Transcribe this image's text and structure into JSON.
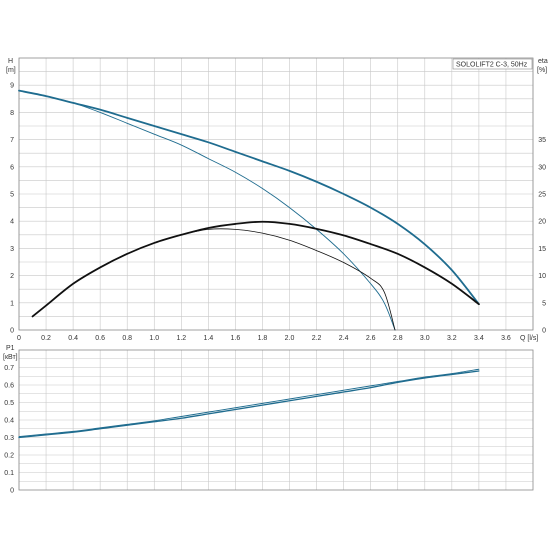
{
  "colors": {
    "h_curve": "#1f6c8f",
    "eta_curve": "#111111",
    "p1_curve": "#1f6c8f",
    "grid": "#c8c8c8",
    "frame": "#8a8a8a"
  },
  "chart_data": [
    {
      "type": "line",
      "legend_box": "SOLOLIFT2 C-3, 50Hz",
      "xlabel": "Q [l/s]",
      "ylabel_left": "H",
      "ylabel_left_unit": "[m]",
      "ylabel_right": "eta",
      "ylabel_right_unit": "[%]",
      "xlim": [
        0,
        3.8
      ],
      "ylim": [
        0,
        10
      ],
      "ylim_right": [
        0,
        50
      ],
      "x_ticks": [
        "0",
        "0.2",
        "0.4",
        "0.6",
        "0.8",
        "1.0",
        "1.2",
        "1.4",
        "1.6",
        "1.8",
        "2.0",
        "2.2",
        "2.4",
        "2.6",
        "2.8",
        "3.0",
        "3.2",
        "3.4",
        "3.6"
      ],
      "y_ticks": [
        "0",
        "1",
        "2",
        "3",
        "4",
        "5",
        "6",
        "7",
        "8",
        "9"
      ],
      "y_ticks_right": [
        "0",
        "5",
        "10",
        "15",
        "20",
        "25",
        "30",
        "35"
      ],
      "grid": true,
      "series": [
        {
          "axis": "left",
          "style": "h-thick",
          "x": [
            0,
            0.2,
            0.4,
            0.6,
            0.8,
            1.0,
            1.2,
            1.4,
            1.6,
            1.8,
            2.0,
            2.2,
            2.4,
            2.6,
            2.8,
            3.0,
            3.2,
            3.4
          ],
          "y": [
            8.8,
            8.6,
            8.35,
            8.1,
            7.8,
            7.5,
            7.2,
            6.9,
            6.55,
            6.2,
            5.85,
            5.45,
            5.0,
            4.5,
            3.9,
            3.15,
            2.2,
            0.95
          ]
        },
        {
          "axis": "left",
          "style": "h-thin",
          "x": [
            0,
            0.2,
            0.4,
            0.6,
            0.8,
            1.0,
            1.2,
            1.4,
            1.6,
            1.8,
            2.0,
            2.2,
            2.4,
            2.6,
            2.7,
            2.78
          ],
          "y": [
            8.8,
            8.6,
            8.35,
            8.0,
            7.6,
            7.2,
            6.8,
            6.3,
            5.8,
            5.2,
            4.5,
            3.7,
            2.8,
            1.7,
            1.0,
            0.0
          ]
        },
        {
          "axis": "right",
          "style": "eta-thick",
          "x": [
            0.1,
            0.2,
            0.4,
            0.6,
            0.8,
            1.0,
            1.2,
            1.4,
            1.6,
            1.8,
            2.0,
            2.2,
            2.4,
            2.6,
            2.8,
            3.0,
            3.2,
            3.4
          ],
          "y": [
            2.5,
            4.5,
            8.5,
            11.5,
            14.0,
            16.0,
            17.5,
            18.75,
            19.5,
            19.9,
            19.5,
            18.6,
            17.4,
            15.8,
            14.0,
            11.5,
            8.5,
            4.75
          ]
        },
        {
          "axis": "right",
          "style": "eta-thin",
          "x": [
            0.1,
            0.2,
            0.4,
            0.6,
            0.8,
            1.0,
            1.2,
            1.4,
            1.6,
            1.8,
            2.0,
            2.2,
            2.4,
            2.6,
            2.7,
            2.78
          ],
          "y": [
            2.5,
            4.5,
            8.5,
            11.5,
            14.0,
            16.0,
            17.5,
            18.5,
            18.5,
            17.8,
            16.5,
            14.6,
            12.4,
            9.5,
            7.0,
            0.0
          ]
        }
      ]
    },
    {
      "type": "line",
      "ylabel_left": "P1",
      "ylabel_left_unit": "[кВт]",
      "xlim": [
        0,
        3.8
      ],
      "ylim": [
        0,
        0.8
      ],
      "y_ticks": [
        "0",
        "0.1",
        "0.2",
        "0.3",
        "0.4",
        "0.5",
        "0.6",
        "0.7"
      ],
      "grid": true,
      "series": [
        {
          "axis": "left",
          "style": "p1-a",
          "x": [
            0,
            0.2,
            0.4,
            0.6,
            0.8,
            1.0,
            1.2,
            1.4,
            1.6,
            1.8,
            2.0,
            2.2,
            2.4,
            2.6,
            2.8,
            3.0,
            3.2,
            3.4
          ],
          "y": [
            0.3,
            0.315,
            0.33,
            0.35,
            0.37,
            0.39,
            0.41,
            0.435,
            0.46,
            0.485,
            0.51,
            0.535,
            0.56,
            0.585,
            0.615,
            0.64,
            0.66,
            0.68
          ]
        },
        {
          "axis": "left",
          "style": "p1-b",
          "x": [
            0,
            0.2,
            0.4,
            0.6,
            0.8,
            1.0,
            1.2,
            1.4,
            1.6,
            1.8,
            2.0,
            2.2,
            2.4,
            2.6,
            2.8,
            3.0,
            3.2,
            3.4
          ],
          "y": [
            0.305,
            0.32,
            0.335,
            0.355,
            0.375,
            0.395,
            0.42,
            0.445,
            0.47,
            0.495,
            0.52,
            0.545,
            0.57,
            0.595,
            0.62,
            0.645,
            0.665,
            0.69
          ]
        }
      ]
    }
  ]
}
